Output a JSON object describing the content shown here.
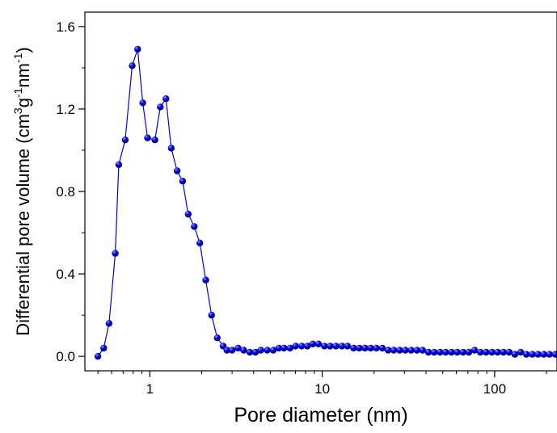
{
  "chart_data": {
    "type": "scatter",
    "xlabel": "Pore diameter (nm)",
    "ylabel": {
      "base": "Differential pore volume (cm",
      "sup1": "3",
      "mid": "g",
      "sup2": "-1",
      "mid2": "nm",
      "sup3": "-1",
      "end": ")"
    },
    "x_scale": "log",
    "xlim": [
      0.42,
      230
    ],
    "ylim": [
      -0.07,
      1.67
    ],
    "x_ticks": [
      {
        "value": 1,
        "label": "1"
      },
      {
        "value": 10,
        "label": "10"
      },
      {
        "value": 100,
        "label": "100"
      }
    ],
    "y_ticks": [
      {
        "value": 0.0,
        "label": "0.0"
      },
      {
        "value": 0.4,
        "label": "0.4"
      },
      {
        "value": 0.8,
        "label": "0.8"
      },
      {
        "value": 1.2,
        "label": "1.2"
      },
      {
        "value": 1.6,
        "label": "1.6"
      }
    ],
    "grid": false,
    "legend": "none",
    "series_color": "#0000e6",
    "series": [
      {
        "x": [
          0.5,
          0.54,
          0.58,
          0.63,
          0.66,
          0.72,
          0.79,
          0.85,
          0.91,
          0.97,
          1.07,
          1.15,
          1.24,
          1.33,
          1.44,
          1.55,
          1.67,
          1.81,
          1.95,
          2.11,
          2.28,
          2.46,
          2.66,
          2.8,
          3.0,
          3.25,
          3.5,
          3.8,
          4.1,
          4.4,
          4.8,
          5.2,
          5.6,
          6.0,
          6.5,
          7.0,
          7.6,
          8.2,
          8.8,
          9.5,
          10.3,
          11.1,
          12.0,
          13.0,
          14.0,
          15.2,
          16.4,
          17.7,
          19.1,
          20.6,
          22.3,
          24.1,
          26.0,
          28.1,
          30.3,
          32.8,
          35.4,
          38.2,
          41.3,
          44.6,
          48.2,
          52.0,
          56.2,
          60.7,
          65.6,
          70.8,
          76.5,
          82.6,
          89.2,
          96.4,
          104.1,
          112.4,
          121.4,
          131.1,
          141.6,
          153.0,
          165.2,
          178.4,
          192.7,
          208.1,
          224.8
        ],
        "values": [
          0.0,
          0.04,
          0.16,
          0.5,
          0.93,
          1.05,
          1.41,
          1.49,
          1.23,
          1.06,
          1.05,
          1.21,
          1.25,
          1.01,
          0.9,
          0.85,
          0.69,
          0.63,
          0.55,
          0.37,
          0.2,
          0.09,
          0.05,
          0.03,
          0.03,
          0.04,
          0.03,
          0.02,
          0.02,
          0.03,
          0.03,
          0.03,
          0.04,
          0.04,
          0.04,
          0.05,
          0.05,
          0.05,
          0.06,
          0.06,
          0.05,
          0.05,
          0.05,
          0.05,
          0.05,
          0.04,
          0.04,
          0.04,
          0.04,
          0.04,
          0.04,
          0.03,
          0.03,
          0.03,
          0.03,
          0.03,
          0.03,
          0.03,
          0.02,
          0.02,
          0.02,
          0.02,
          0.02,
          0.02,
          0.02,
          0.02,
          0.03,
          0.02,
          0.02,
          0.02,
          0.02,
          0.02,
          0.02,
          0.01,
          0.02,
          0.01,
          0.01,
          0.01,
          0.01,
          0.01,
          0.01
        ]
      }
    ]
  }
}
